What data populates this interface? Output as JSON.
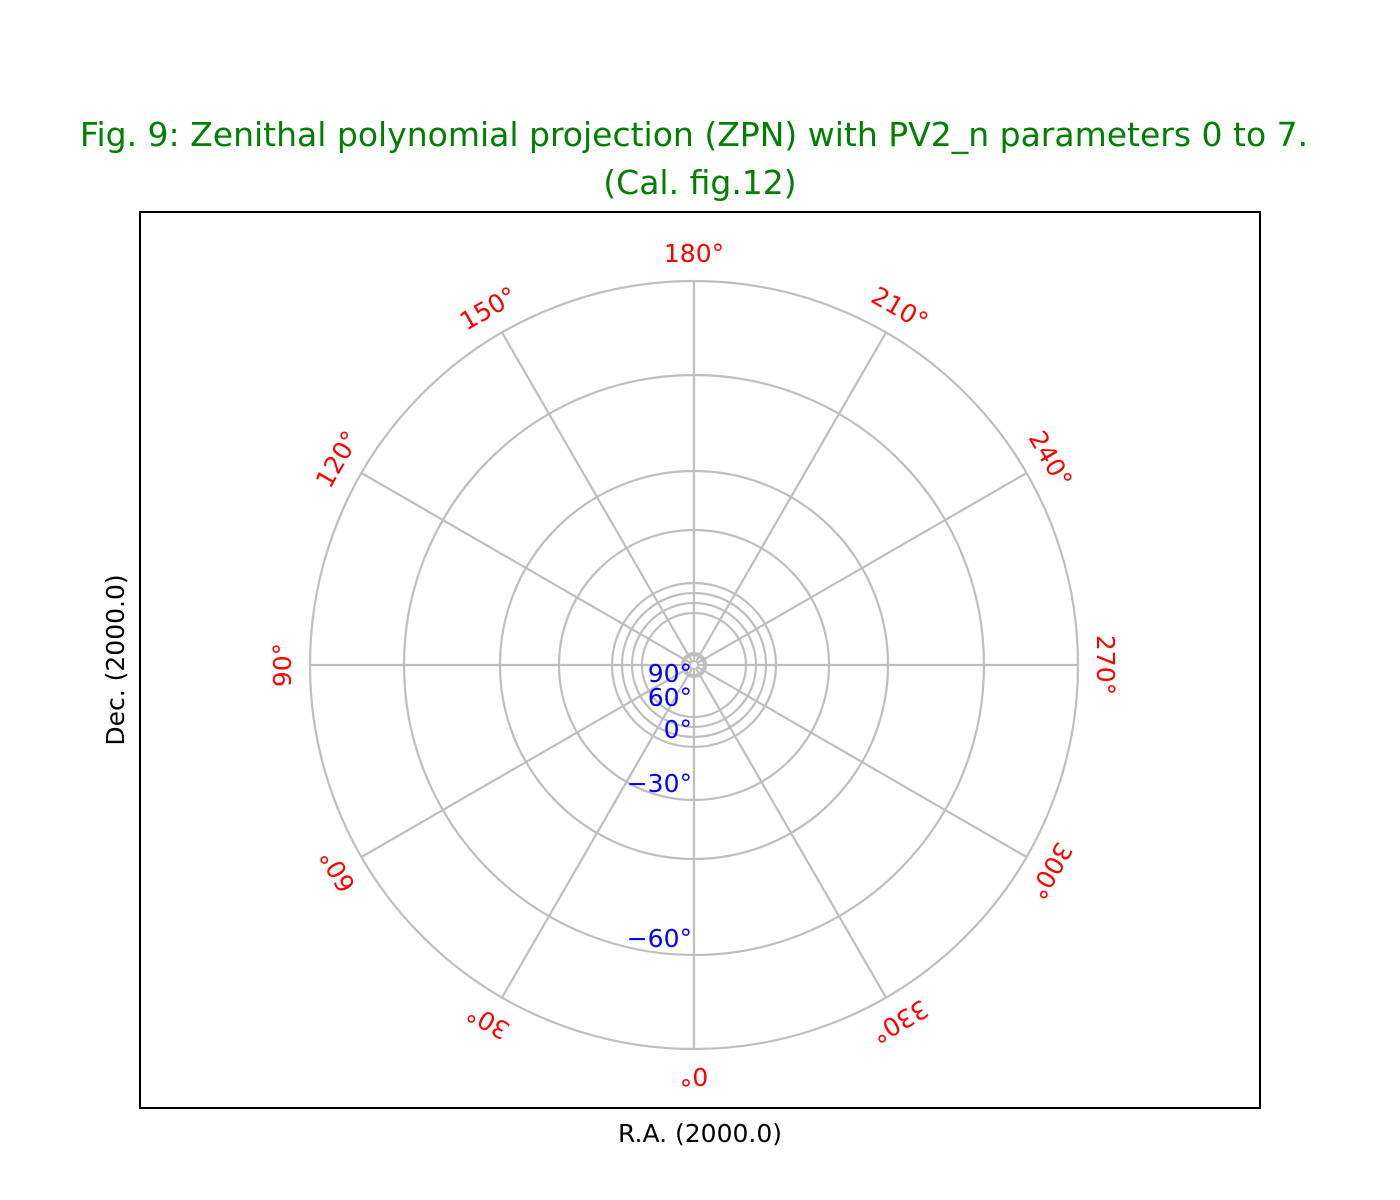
{
  "chart_data": {
    "type": "polar-grid",
    "title_line1": "Fig. 9: Zenithal polynomial projection (ZPN) with PV2_n parameters 0 to 7.",
    "title_line2": "(Cal. fig.12)",
    "xlabel": "R.A. (2000.0)",
    "ylabel": "Dec. (2000.0)",
    "ra_ticks": [
      {
        "value": 0,
        "label": "0°"
      },
      {
        "value": 30,
        "label": "30°"
      },
      {
        "value": 60,
        "label": "60°"
      },
      {
        "value": 90,
        "label": "90°"
      },
      {
        "value": 120,
        "label": "120°"
      },
      {
        "value": 150,
        "label": "150°"
      },
      {
        "value": 180,
        "label": "180°"
      },
      {
        "value": 210,
        "label": "210°"
      },
      {
        "value": 240,
        "label": "240°"
      },
      {
        "value": 270,
        "label": "270°"
      },
      {
        "value": 300,
        "label": "300°"
      },
      {
        "value": 330,
        "label": "330°"
      }
    ],
    "dec_ticks": [
      {
        "value": 90,
        "label": "90°"
      },
      {
        "value": 60,
        "label": "60°"
      },
      {
        "value": 0,
        "label": "0°"
      },
      {
        "value": -30,
        "label": "−30°"
      },
      {
        "value": -60,
        "label": "−60°"
      }
    ],
    "colors": {
      "title": "#008000",
      "ra_labels": "#ff0000",
      "dec_labels": "#0000ff",
      "grid": "#bebebe",
      "frame": "#000000"
    }
  }
}
